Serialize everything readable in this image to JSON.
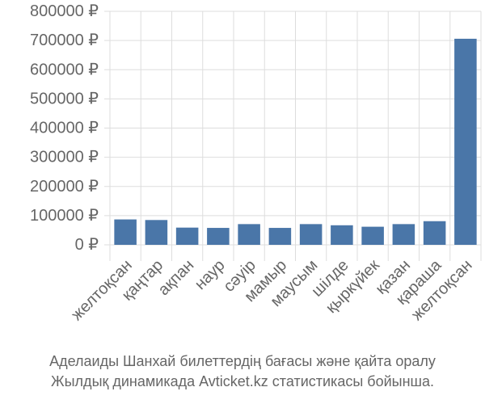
{
  "chart_data": {
    "type": "bar",
    "categories": [
      "желтоқсан",
      "қаңтар",
      "ақпан",
      "наур",
      "сәуір",
      "мамыр",
      "маусым",
      "шілде",
      "қыркүйек",
      "қазан",
      "қараша",
      "желтоқсан"
    ],
    "values": [
      87000,
      85000,
      59000,
      58000,
      71000,
      58000,
      71000,
      67000,
      62000,
      71000,
      81000,
      706000
    ],
    "ylim": [
      0,
      800000
    ],
    "yticks": [
      0,
      100000,
      200000,
      300000,
      400000,
      500000,
      600000,
      700000,
      800000
    ],
    "ytick_labels": [
      "0 ₽",
      "100000 ₽",
      "200000 ₽",
      "300000 ₽",
      "400000 ₽",
      "500000 ₽",
      "600000 ₽",
      "700000 ₽",
      "800000 ₽"
    ],
    "grid": true,
    "colors": {
      "bar": "#4a76a8",
      "grid": "#dddddd",
      "tick_text": "#666666"
    }
  },
  "caption": {
    "line1": "Аделаиды Шанхай билеттердің бағасы және қайта оралу",
    "line2": "Жылдық динамикада Avticket.kz статистикасы бойынша."
  }
}
